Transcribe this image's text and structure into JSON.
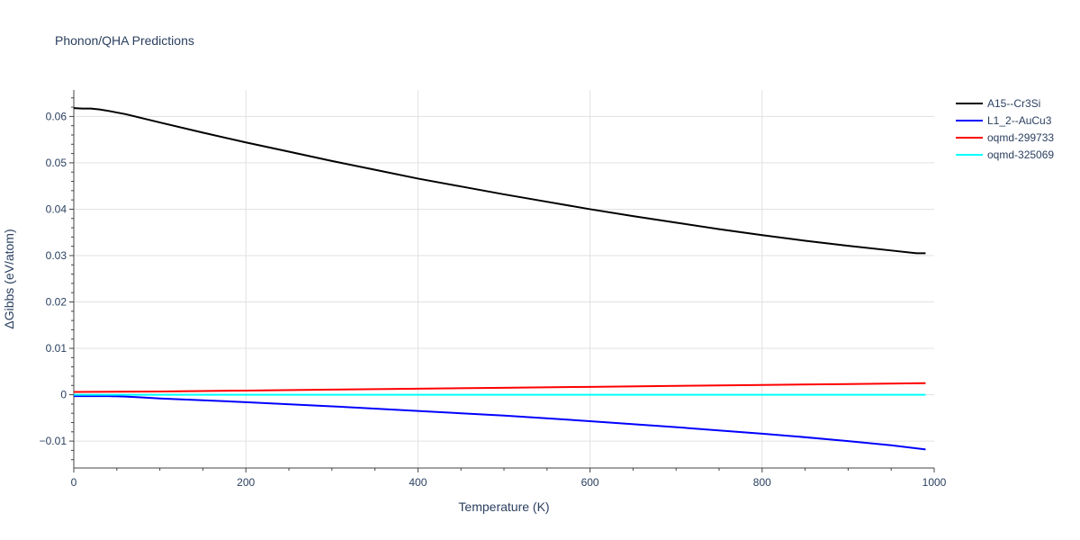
{
  "chart_data": {
    "type": "line",
    "title": "Phonon/QHA Predictions",
    "xlabel": "Temperature (K)",
    "ylabel": "ΔGibbs (eV/atom)",
    "xlim": [
      0,
      1000
    ],
    "ylim": [
      -0.0158,
      0.0657
    ],
    "xticks": [
      0,
      200,
      400,
      600,
      800,
      1000
    ],
    "xtick_labels": [
      "0",
      "200",
      "400",
      "600",
      "800",
      "1000"
    ],
    "yticks": [
      -0.01,
      0,
      0.01,
      0.02,
      0.03,
      0.04,
      0.05,
      0.06
    ],
    "ytick_labels": [
      "−0.01",
      "0",
      "0.01",
      "0.02",
      "0.03",
      "0.04",
      "0.05",
      "0.06"
    ],
    "grid": true,
    "legend_position": "top-right",
    "series": [
      {
        "name": "A15--Cr3Si",
        "color": "#000000",
        "x": [
          0,
          10,
          20,
          30,
          40,
          60,
          80,
          100,
          150,
          200,
          250,
          300,
          350,
          400,
          450,
          500,
          550,
          600,
          650,
          700,
          750,
          800,
          850,
          900,
          950,
          980,
          990
        ],
        "y": [
          0.0618,
          0.0617,
          0.0617,
          0.0615,
          0.0612,
          0.0605,
          0.0596,
          0.0587,
          0.0565,
          0.0544,
          0.0524,
          0.0504,
          0.0485,
          0.0466,
          0.0449,
          0.0432,
          0.0416,
          0.04,
          0.0385,
          0.0371,
          0.0357,
          0.0344,
          0.0332,
          0.0321,
          0.0311,
          0.0305,
          0.0305
        ]
      },
      {
        "name": "L1_2--AuCu3",
        "color": "#0000ff",
        "x": [
          0,
          20,
          40,
          60,
          80,
          100,
          150,
          200,
          300,
          400,
          500,
          600,
          700,
          800,
          840,
          900,
          950,
          990
        ],
        "y": [
          -0.0003,
          -0.0003,
          -0.0003,
          -0.0004,
          -0.0006,
          -0.0008,
          -0.0012,
          -0.0016,
          -0.0025,
          -0.0035,
          -0.0045,
          -0.0057,
          -0.007,
          -0.0084,
          -0.009,
          -0.01,
          -0.0109,
          -0.0118
        ]
      },
      {
        "name": "oqmd-299733",
        "color": "#ff0000",
        "x": [
          0,
          100,
          200,
          300,
          400,
          500,
          600,
          700,
          800,
          900,
          990
        ],
        "y": [
          0.0006,
          0.0007,
          0.0009,
          0.0011,
          0.0013,
          0.0015,
          0.0017,
          0.0019,
          0.0021,
          0.0023,
          0.0025
        ]
      },
      {
        "name": "oqmd-325069",
        "color": "#00ffff",
        "x": [
          0,
          200,
          400,
          600,
          800,
          990
        ],
        "y": [
          0,
          0,
          0,
          0,
          0,
          0
        ]
      }
    ]
  }
}
